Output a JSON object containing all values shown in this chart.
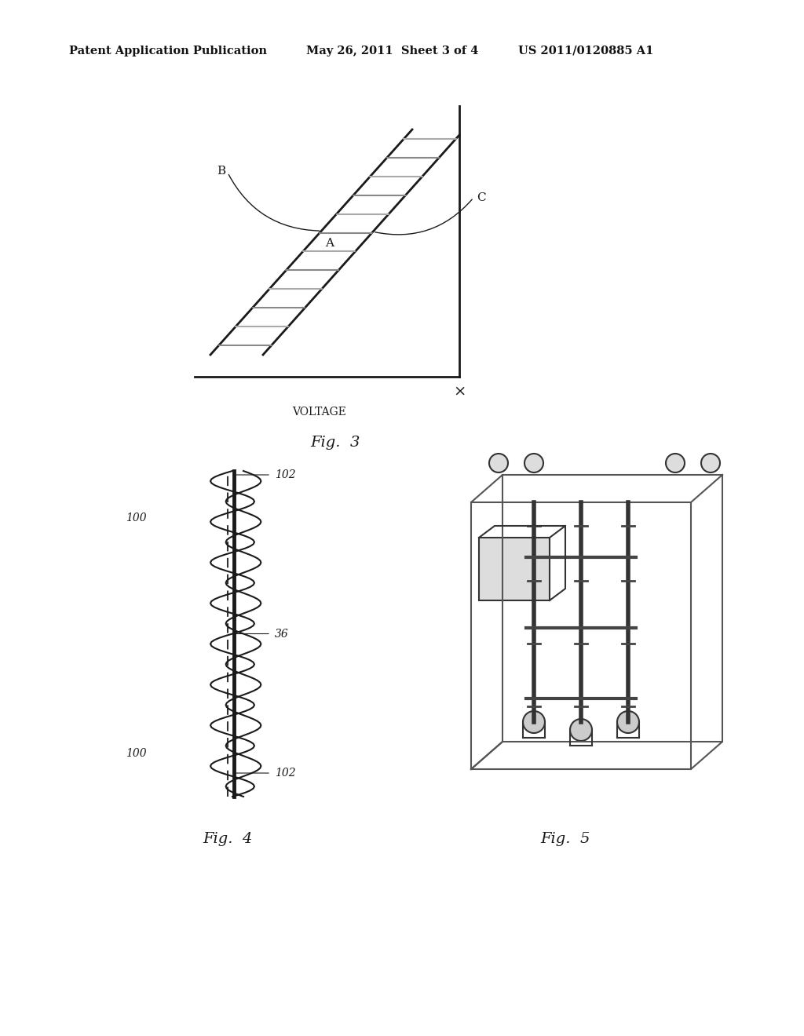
{
  "bg_color": "#ffffff",
  "header_left": "Patent Application Publication",
  "header_center": "May 26, 2011  Sheet 3 of 4",
  "header_right": "US 2011/0120885 A1",
  "fig3_caption": "Fig.  3",
  "fig4_caption": "Fig.  4",
  "fig5_caption": "Fig.  5",
  "fig3_xlabel": "VOLTAGE",
  "label_A": "A",
  "label_B": "B",
  "label_C": "C",
  "label_36": "36",
  "label_102_top": "102",
  "label_102_bot": "102",
  "label_100_top": "100",
  "label_100_bot": "100"
}
